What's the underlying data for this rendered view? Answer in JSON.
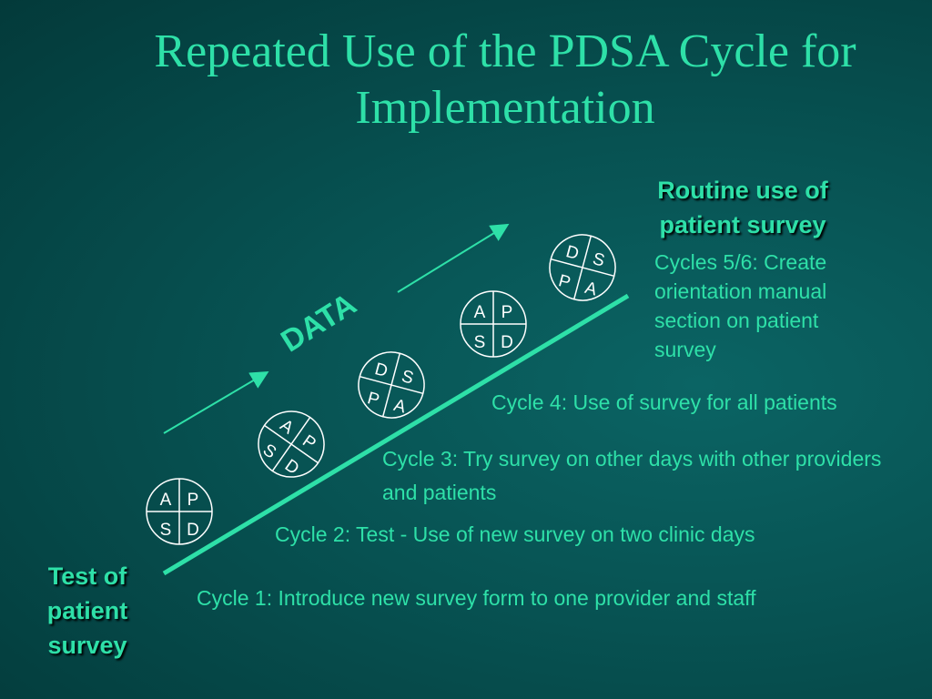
{
  "title": "Repeated Use of the PDSA Cycle for Implementation",
  "colors": {
    "accent": "#2ee0a8",
    "background": "#075252",
    "circle_text": "#ffffff"
  },
  "start_label": "Test of patient survey",
  "end_label": "Routine use of patient survey",
  "data_label": "DATA",
  "cycles": [
    {
      "label": "Cycle 1: Introduce new survey form to one provider and staff"
    },
    {
      "label": "Cycle 2: Test - Use of new survey on two clinic days"
    },
    {
      "label": "Cycle 3: Try survey on other days with other providers and patients"
    },
    {
      "label": "Cycle 4: Use of survey for all patients"
    },
    {
      "label": "Cycles 5/6: Create orientation manual section on patient survey"
    }
  ],
  "pdsa_circles": [
    {
      "letters": [
        "A",
        "P",
        "S",
        "D"
      ]
    },
    {
      "letters": [
        "A",
        "P",
        "S",
        "D"
      ]
    },
    {
      "letters": [
        "D",
        "S",
        "P",
        "A"
      ]
    },
    {
      "letters": [
        "A",
        "P",
        "S",
        "D"
      ]
    },
    {
      "letters": [
        "D",
        "S",
        "P",
        "A"
      ]
    }
  ]
}
